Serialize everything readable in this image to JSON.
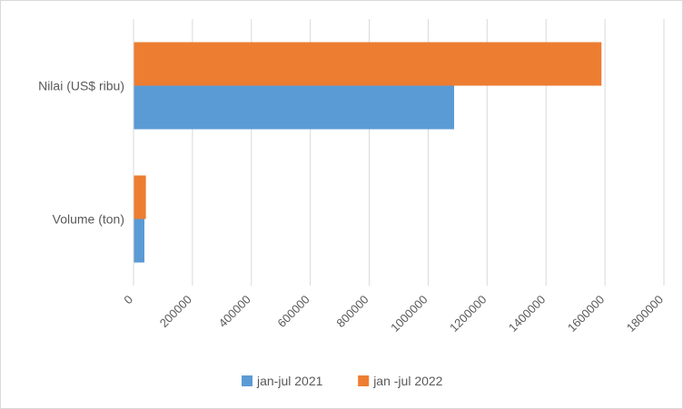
{
  "chart_data": {
    "type": "bar",
    "orientation": "horizontal",
    "categories": [
      "Nilai (US$ ribu)",
      "Volume (ton)"
    ],
    "series": [
      {
        "name": "jan-jul 2021",
        "color": "#5b9bd5",
        "values": [
          1088000,
          37000
        ]
      },
      {
        "name": "jan -jul 2022",
        "color": "#ed7d31",
        "values": [
          1588000,
          42000
        ]
      }
    ],
    "xlim": [
      0,
      1800000
    ],
    "xticks": [
      "0",
      "200000",
      "400000",
      "600000",
      "800000",
      "1000000",
      "1200000",
      "1400000",
      "1600000",
      "1800000"
    ],
    "grid": true,
    "legend": "bottom"
  }
}
